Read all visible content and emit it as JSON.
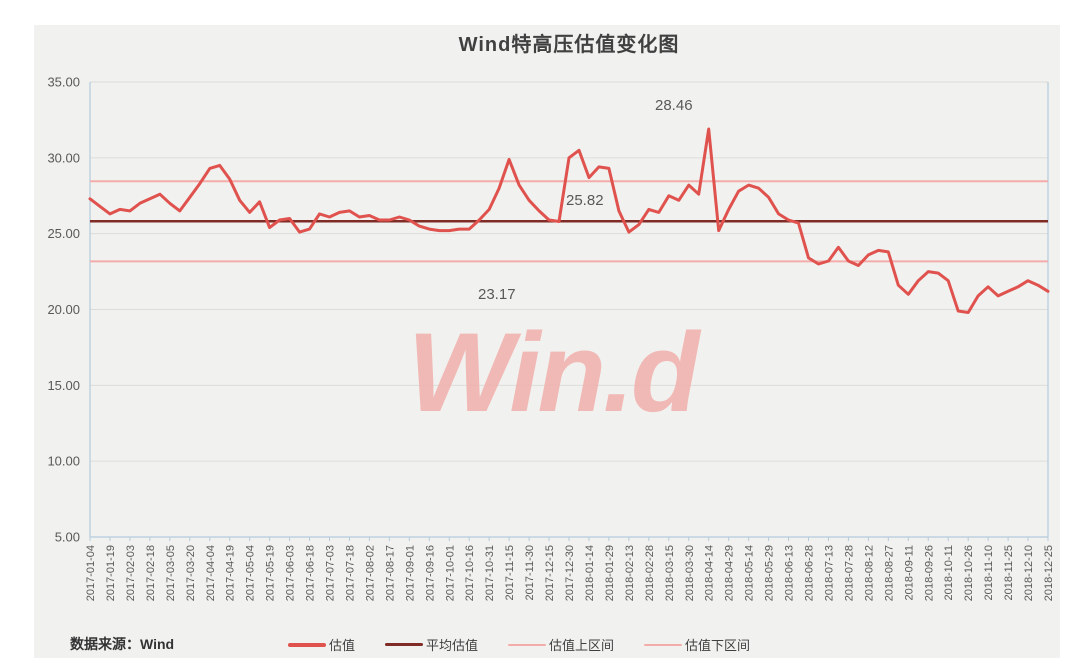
{
  "title": "Wind特高压估值变化图",
  "watermark": "Win.d",
  "source": {
    "label": "数据来源：",
    "value": "Wind"
  },
  "annotations": {
    "upper": "28.46",
    "average": "25.82",
    "lower": "23.17"
  },
  "colors": {
    "card_bg": "#f1f1ef",
    "series_red": "#e0524e",
    "average_maroon": "#7f2b26",
    "band_pink": "#f4acab",
    "gridline": "#dcdcda",
    "plot_border": "#b5cbdd",
    "axis_text": "#595959",
    "watermark_pink": "#f1b2ae"
  },
  "legend": [
    {
      "label": "估值",
      "color": "#e0524e",
      "thickness": 4
    },
    {
      "label": "平均估值",
      "color": "#7f2b26",
      "thickness": 3
    },
    {
      "label": "估值上区间",
      "color": "#f4acab",
      "thickness": 2
    },
    {
      "label": "估值下区间",
      "color": "#f4acab",
      "thickness": 2
    }
  ],
  "chart_data": {
    "type": "line",
    "title": "Wind特高压估值变化图",
    "xlabel": "",
    "ylabel": "",
    "ylim": [
      5,
      35
    ],
    "grid": true,
    "legend_position": "bottom",
    "ytick_labels": [
      "5.00",
      "10.00",
      "15.00",
      "20.00",
      "25.00",
      "30.00",
      "35.00"
    ],
    "x_tick_labels": [
      "2017-01-04",
      "2017-01-19",
      "2017-02-03",
      "2017-02-18",
      "2017-03-05",
      "2017-03-20",
      "2017-04-04",
      "2017-04-19",
      "2017-05-04",
      "2017-05-19",
      "2017-06-03",
      "2017-06-18",
      "2017-07-03",
      "2017-07-18",
      "2017-08-02",
      "2017-08-17",
      "2017-09-01",
      "2017-09-16",
      "2017-10-01",
      "2017-10-16",
      "2017-10-31",
      "2017-11-15",
      "2017-11-30",
      "2017-12-15",
      "2017-12-30",
      "2018-01-14",
      "2018-01-29",
      "2018-02-13",
      "2018-02-28",
      "2018-03-15",
      "2018-03-30",
      "2018-04-14",
      "2018-04-29",
      "2018-05-14",
      "2018-05-29",
      "2018-06-13",
      "2018-06-28",
      "2018-07-13",
      "2018-07-28",
      "2018-08-12",
      "2018-08-27",
      "2018-09-11",
      "2018-09-26",
      "2018-10-11",
      "2018-10-26",
      "2018-11-10",
      "2018-11-25",
      "2018-12-10",
      "2018-12-25"
    ],
    "series": [
      {
        "name": "估值",
        "color": "#e0524e",
        "width": 3,
        "values": [
          27.3,
          26.8,
          26.3,
          26.6,
          26.5,
          27.0,
          27.3,
          27.6,
          27.0,
          26.5,
          27.4,
          28.3,
          29.3,
          29.5,
          28.6,
          27.2,
          26.4,
          27.1,
          25.4,
          25.9,
          26.0,
          25.1,
          25.3,
          26.3,
          26.1,
          26.4,
          26.5,
          26.1,
          26.2,
          25.9,
          25.9,
          26.1,
          25.9,
          25.5,
          25.3,
          25.2,
          25.2,
          25.3,
          25.3,
          25.9,
          26.6,
          28.0,
          29.9,
          28.2,
          27.2,
          26.5,
          25.9,
          25.8,
          30.0,
          30.5,
          28.7,
          29.4,
          29.3,
          26.5,
          25.1,
          25.6,
          26.6,
          26.4,
          27.5,
          27.2,
          28.2,
          27.6,
          31.9,
          25.2,
          26.6,
          27.8,
          28.2,
          28.0,
          27.4,
          26.3,
          25.9,
          25.7,
          23.4,
          23.0,
          23.2,
          24.1,
          23.2,
          22.9,
          23.6,
          23.9,
          23.8,
          21.6,
          21.0,
          21.9,
          22.5,
          22.4,
          21.9,
          19.9,
          19.8,
          20.9,
          21.5,
          20.9,
          21.2,
          21.5,
          21.9,
          21.6,
          21.2
        ]
      },
      {
        "name": "平均估值",
        "color": "#7f2b26",
        "width": 2.5,
        "constant": 25.82
      },
      {
        "name": "估值上区间",
        "color": "#f4acab",
        "width": 2,
        "constant": 28.46
      },
      {
        "name": "估值下区间",
        "color": "#f4acab",
        "width": 2,
        "constant": 23.17
      }
    ]
  }
}
